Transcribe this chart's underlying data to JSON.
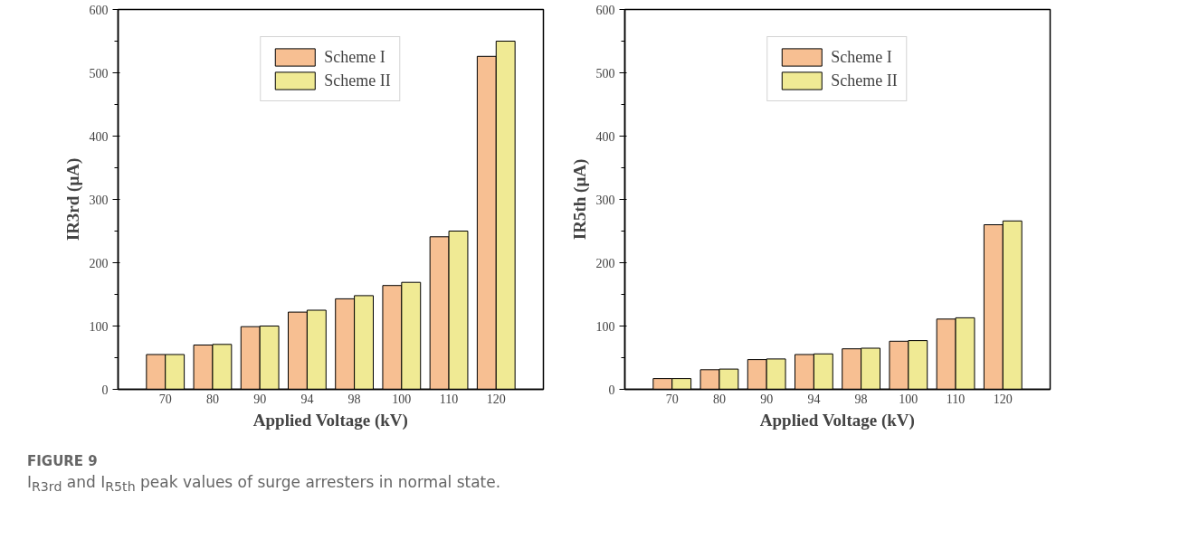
{
  "chart_data": [
    {
      "type": "bar",
      "categories": [
        "70",
        "80",
        "90",
        "94",
        "98",
        "100",
        "110",
        "120"
      ],
      "xlabel": "Applied Voltage (kV)",
      "ylabel": "IR3rd (μA)",
      "ylim": [
        0,
        600
      ],
      "yticks": [
        0,
        100,
        200,
        300,
        400,
        500,
        600
      ],
      "grid": false,
      "legend": "top",
      "series": [
        {
          "name": "Scheme I",
          "color": "#f7bf92",
          "values": [
            55,
            70,
            99,
            122,
            143,
            164,
            241,
            526
          ]
        },
        {
          "name": "Scheme II",
          "color": "#f0ea94",
          "values": [
            55,
            71,
            100,
            125,
            148,
            169,
            250,
            550
          ]
        }
      ],
      "annotations": [
        "FIGURE 9",
        "I$_{R3rd}$ and I$_{R5th}$ peak values of surge arresters in normal state."
      ]
    },
    {
      "type": "bar",
      "categories": [
        "70",
        "80",
        "90",
        "94",
        "98",
        "100",
        "110",
        "120"
      ],
      "xlabel": "Applied Voltage (kV)",
      "ylabel": "IR5th (μA)",
      "ylim": [
        0,
        600
      ],
      "yticks": [
        0,
        100,
        200,
        300,
        400,
        500,
        600
      ],
      "grid": false,
      "legend": "top",
      "series": [
        {
          "name": "Scheme I",
          "color": "#f7bf92",
          "values": [
            17,
            31,
            47,
            55,
            64,
            76,
            111,
            260
          ]
        },
        {
          "name": "Scheme II",
          "color": "#f0ea94",
          "values": [
            17,
            32,
            48,
            56,
            65,
            77,
            113,
            266
          ]
        }
      ]
    }
  ]
}
